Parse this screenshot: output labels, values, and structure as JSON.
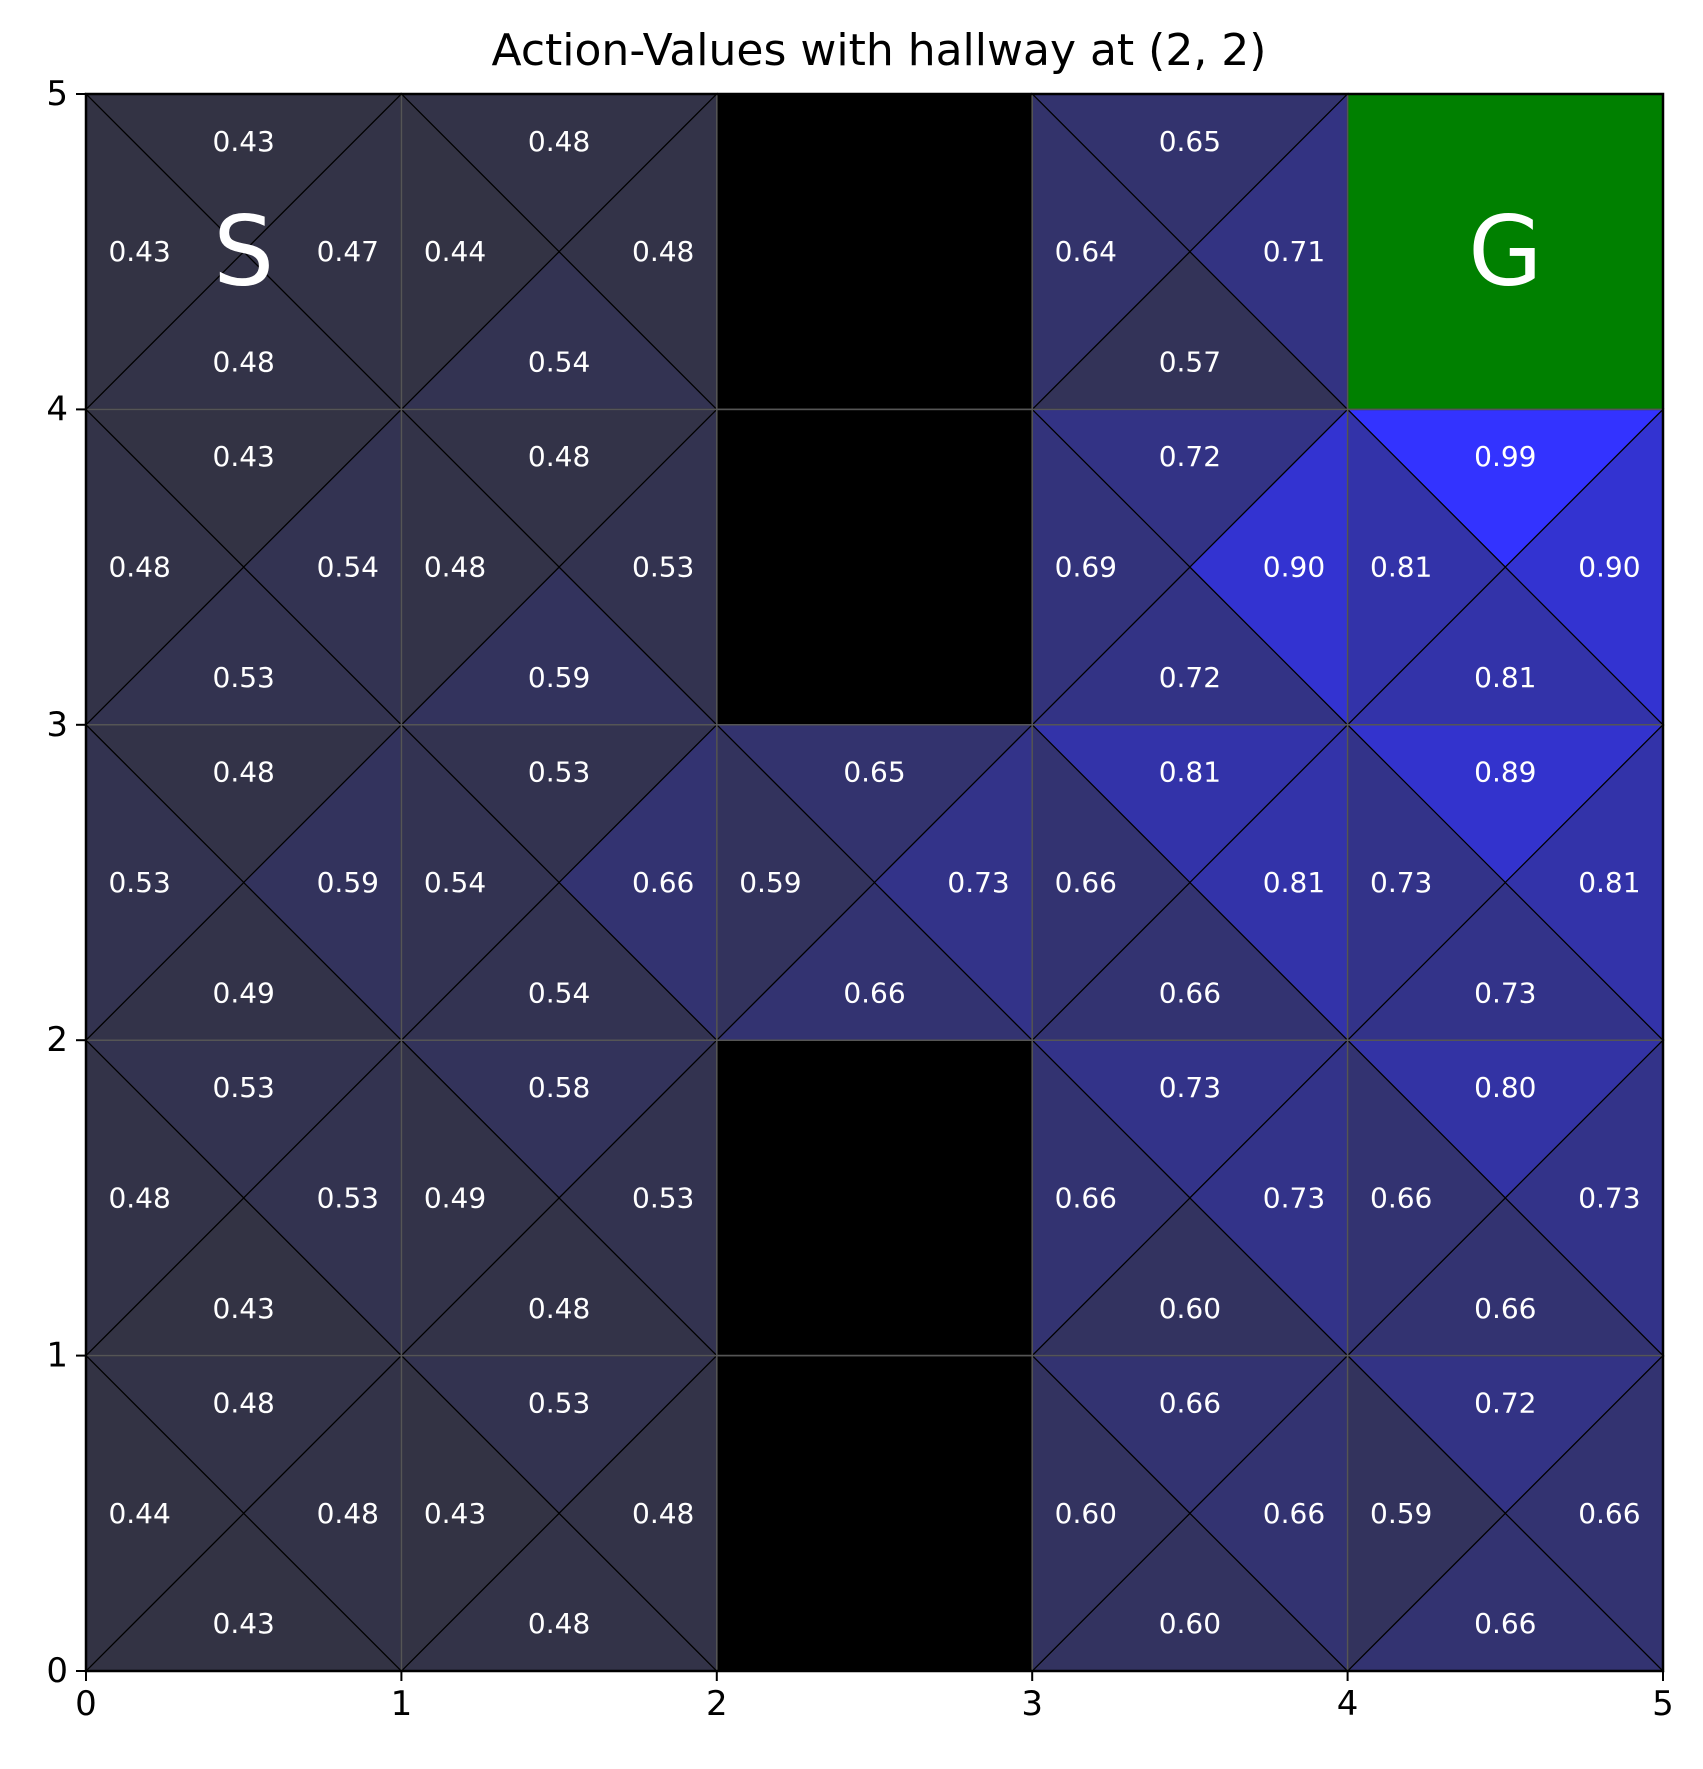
{
  "chart_data": {
    "type": "heatmap",
    "title": "Action-Values with hallway at (2, 2)",
    "xlabel": "",
    "ylabel": "",
    "xlim": [
      0,
      5
    ],
    "ylim": [
      0,
      5
    ],
    "x_ticks": [
      "0",
      "1",
      "2",
      "3",
      "4",
      "5"
    ],
    "y_ticks": [
      "0",
      "1",
      "2",
      "3",
      "4",
      "5"
    ],
    "grid": true,
    "color_low": "#333344",
    "color_high": "#3333ff",
    "wall_color": "#000000",
    "goal_color": "#008000",
    "start_label": "S",
    "goal_label": "G",
    "start_cell": {
      "col": 0,
      "row": 4
    },
    "goal_cell": {
      "col": 4,
      "row": 4
    },
    "walls": [
      {
        "col": 2,
        "row": 4
      },
      {
        "col": 2,
        "row": 3
      },
      {
        "col": 2,
        "row": 1
      },
      {
        "col": 2,
        "row": 0
      }
    ],
    "cells": [
      {
        "col": 0,
        "row": 4,
        "up": "0.43",
        "down": "0.48",
        "left": "0.43",
        "right": "0.47"
      },
      {
        "col": 1,
        "row": 4,
        "up": "0.48",
        "down": "0.54",
        "left": "0.44",
        "right": "0.48"
      },
      {
        "col": 3,
        "row": 4,
        "up": "0.65",
        "down": "0.57",
        "left": "0.64",
        "right": "0.71"
      },
      {
        "col": 0,
        "row": 3,
        "up": "0.43",
        "down": "0.53",
        "left": "0.48",
        "right": "0.54"
      },
      {
        "col": 1,
        "row": 3,
        "up": "0.48",
        "down": "0.59",
        "left": "0.48",
        "right": "0.53"
      },
      {
        "col": 3,
        "row": 3,
        "up": "0.72",
        "down": "0.72",
        "left": "0.69",
        "right": "0.90"
      },
      {
        "col": 4,
        "row": 3,
        "up": "0.99",
        "down": "0.81",
        "left": "0.81",
        "right": "0.90"
      },
      {
        "col": 0,
        "row": 2,
        "up": "0.48",
        "down": "0.49",
        "left": "0.53",
        "right": "0.59"
      },
      {
        "col": 1,
        "row": 2,
        "up": "0.53",
        "down": "0.54",
        "left": "0.54",
        "right": "0.66"
      },
      {
        "col": 2,
        "row": 2,
        "up": "0.65",
        "down": "0.66",
        "left": "0.59",
        "right": "0.73"
      },
      {
        "col": 3,
        "row": 2,
        "up": "0.81",
        "down": "0.66",
        "left": "0.66",
        "right": "0.81"
      },
      {
        "col": 4,
        "row": 2,
        "up": "0.89",
        "down": "0.73",
        "left": "0.73",
        "right": "0.81"
      },
      {
        "col": 0,
        "row": 1,
        "up": "0.53",
        "down": "0.43",
        "left": "0.48",
        "right": "0.53"
      },
      {
        "col": 1,
        "row": 1,
        "up": "0.58",
        "down": "0.48",
        "left": "0.49",
        "right": "0.53"
      },
      {
        "col": 3,
        "row": 1,
        "up": "0.73",
        "down": "0.60",
        "left": "0.66",
        "right": "0.73"
      },
      {
        "col": 4,
        "row": 1,
        "up": "0.80",
        "down": "0.66",
        "left": "0.66",
        "right": "0.73"
      },
      {
        "col": 0,
        "row": 0,
        "up": "0.48",
        "down": "0.43",
        "left": "0.44",
        "right": "0.48"
      },
      {
        "col": 1,
        "row": 0,
        "up": "0.53",
        "down": "0.48",
        "left": "0.43",
        "right": "0.48"
      },
      {
        "col": 3,
        "row": 0,
        "up": "0.66",
        "down": "0.60",
        "left": "0.60",
        "right": "0.66"
      },
      {
        "col": 4,
        "row": 0,
        "up": "0.72",
        "down": "0.66",
        "left": "0.59",
        "right": "0.66"
      }
    ]
  }
}
